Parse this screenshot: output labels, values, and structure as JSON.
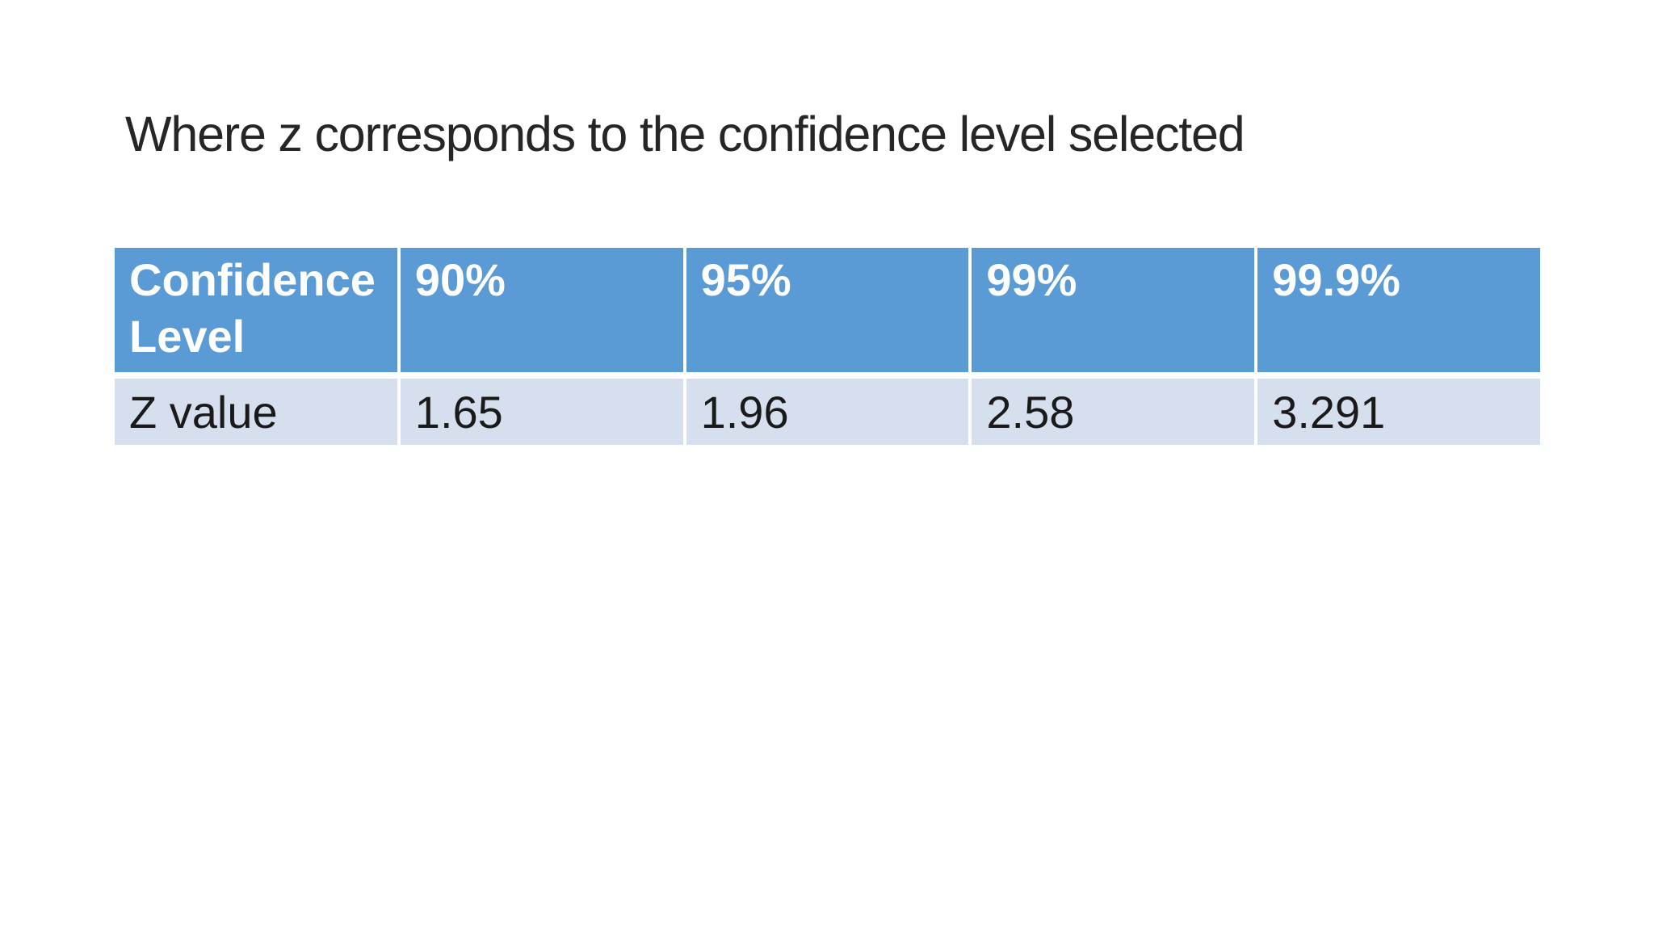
{
  "slide": {
    "title": "Where z corresponds to the confidence level selected",
    "table": {
      "header": [
        "Confidence Level",
        "90%",
        "95%",
        "99%",
        "99.9%"
      ],
      "row": [
        "Z value",
        "1.65",
        "1.96",
        "2.58",
        "3.291"
      ]
    },
    "colors": {
      "header_bg": "#5B9BD5",
      "band_row_bg": "#D5DFEE",
      "header_text": "#FFFFFF",
      "body_text": "#1A1A1A",
      "title_text": "#262626",
      "slide_bg": "#FFFFFF"
    }
  }
}
